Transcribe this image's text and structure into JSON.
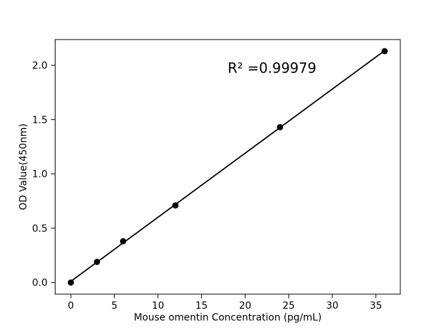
{
  "chart_data": {
    "type": "scatter",
    "title": "",
    "xlabel": "Mouse omentin Concentration (pg/mL)",
    "ylabel": "OD Value(450nm)",
    "points": {
      "x": [
        0,
        3,
        6,
        12,
        24,
        36
      ],
      "y": [
        0.0,
        0.19,
        0.38,
        0.71,
        1.43,
        2.13
      ]
    },
    "fit_line": {
      "slope": 0.059,
      "intercept": 0.011,
      "x_start": 0,
      "x_end": 36
    },
    "annotation": {
      "text": "R² =0.99979",
      "x": 18.0,
      "y": 1.93
    },
    "xlim": [
      -1.8,
      37.8
    ],
    "ylim": [
      -0.107,
      2.237
    ],
    "xticks": {
      "values": [
        0,
        5,
        10,
        15,
        20,
        25,
        30,
        35
      ],
      "labels": [
        "0",
        "5",
        "10",
        "15",
        "20",
        "25",
        "30",
        "35"
      ]
    },
    "yticks": {
      "values": [
        0.0,
        0.5,
        1.0,
        1.5,
        2.0
      ],
      "labels": [
        "0.0",
        "0.5",
        "1.0",
        "1.5",
        "2.0"
      ]
    },
    "grid": false,
    "legend": null,
    "marker": {
      "shape": "circle",
      "radius": 4.5,
      "color": "#000000"
    },
    "line_color": "#000000",
    "line_width": 1.8,
    "axis_color": "#000000",
    "background_color": "#ffffff"
  }
}
